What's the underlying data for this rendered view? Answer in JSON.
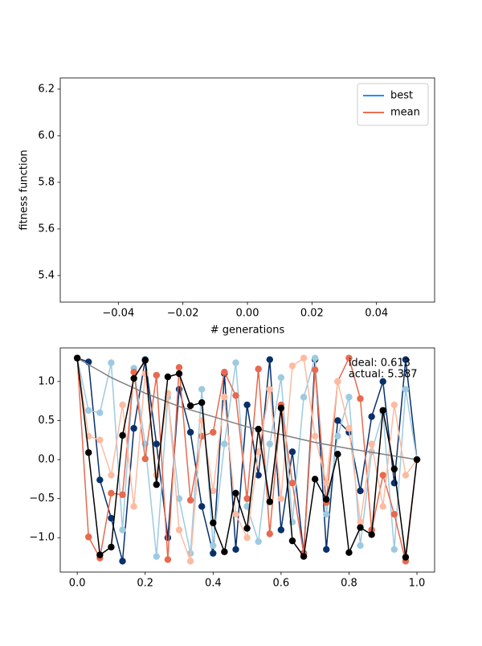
{
  "chart_data": [
    {
      "type": "line",
      "ylabel": "fitness function",
      "xlabel": "# generations",
      "xlim": [
        -0.058,
        0.058
      ],
      "ylim": [
        5.286,
        6.248
      ],
      "xticks": [
        {
          "value": -0.04,
          "label": "−0.04"
        },
        {
          "value": -0.02,
          "label": "−0.02"
        },
        {
          "value": 0,
          "label": "0.00"
        },
        0.02,
        0.04
      ],
      "yticks": [
        5.4,
        5.6,
        5.8,
        {
          "value": 6.0,
          "label": "6.0"
        },
        6.2
      ],
      "x": [],
      "series": [
        {
          "name": "best",
          "color": "#1e90ff",
          "values": []
        },
        {
          "name": "mean",
          "color": "#e8704f",
          "values": []
        }
      ],
      "legend": "upper right"
    },
    {
      "type": "line",
      "xlim": [
        -0.05,
        1.052
      ],
      "ylim": [
        -1.44,
        1.43
      ],
      "xticks": [
        {
          "value": 0,
          "label": "0.0"
        },
        0.2,
        0.4,
        0.6,
        0.8,
        {
          "value": 1,
          "label": "1.0"
        }
      ],
      "yticks": [
        {
          "value": -1,
          "label": "−1.0"
        },
        {
          "value": -0.5,
          "label": "−0.5"
        },
        {
          "value": 0,
          "label": "0.0"
        },
        0.5,
        {
          "value": 1,
          "label": "1.0"
        }
      ],
      "x": [
        0,
        0.0333,
        0.0667,
        0.1,
        0.1333,
        0.1667,
        0.2,
        0.2333,
        0.2667,
        0.3,
        0.3333,
        0.3667,
        0.4,
        0.4333,
        0.4667,
        0.5,
        0.5333,
        0.5667,
        0.6,
        0.6333,
        0.6667,
        0.7,
        0.7333,
        0.7667,
        0.8,
        0.8333,
        0.8667,
        0.9,
        0.9333,
        0.9667,
        1
      ],
      "series": [
        {
          "color": "#08306b",
          "marker": true,
          "values": [
            1.3,
            1.25,
            -0.26,
            -0.75,
            -1.3,
            0.4,
            1.28,
            0.2,
            -1.0,
            0.9,
            0.35,
            -0.6,
            -1.2,
            1.1,
            -1.15,
            0.7,
            -0.2,
            1.28,
            -0.9,
            0.1,
            -1.2,
            1.28,
            -1.15,
            0.5,
            0.35,
            -0.4,
            0.55,
            1.0,
            -0.3,
            1.28,
            0.0
          ]
        },
        {
          "color": "#9ecae1",
          "marker": true,
          "values": [
            1.3,
            0.63,
            0.6,
            1.24,
            -0.9,
            1.17,
            0.2,
            -1.24,
            0.8,
            -0.5,
            -1.2,
            0.9,
            -1.1,
            0.2,
            1.24,
            -0.6,
            -1.05,
            0.2,
            1.05,
            -0.8,
            0.8,
            1.3,
            -0.7,
            0.3,
            0.8,
            -1.1,
            0.1,
            0.6,
            -1.15,
            0.9,
            0.0
          ]
        },
        {
          "color": "#e7694e",
          "marker": true,
          "values": [
            1.3,
            -0.99,
            -1.26,
            -0.43,
            -0.45,
            1.12,
            0.01,
            1.08,
            -1.28,
            1.18,
            -0.52,
            0.3,
            0.35,
            1.12,
            0.82,
            -0.5,
            1.16,
            -0.95,
            0.7,
            -0.3,
            -1.21,
            1.15,
            -0.55,
            1.0,
            1.3,
            0.78,
            -0.9,
            -0.2,
            -0.7,
            -1.3,
            0.0
          ]
        },
        {
          "color": "#fcbba1",
          "marker": true,
          "values": [
            1.3,
            0.3,
            0.25,
            -0.2,
            0.7,
            -0.6,
            1.1,
            -0.2,
            0.85,
            -0.9,
            -1.3,
            0.5,
            -0.4,
            0.8,
            -0.7,
            -1.0,
            0.1,
            0.9,
            -0.5,
            1.2,
            1.3,
            0.3,
            -0.3,
            1.0,
            0.4,
            -0.8,
            0.2,
            -0.6,
            0.7,
            -0.2,
            0.0
          ]
        },
        {
          "color": "#808080",
          "marker": false,
          "x": [
            0,
            0.1,
            0.2,
            0.3,
            0.4,
            0.5,
            0.6,
            0.7,
            0.8,
            0.9,
            1
          ],
          "values": [
            1.3,
            1.05,
            0.85,
            0.68,
            0.55,
            0.42,
            0.32,
            0.22,
            0.14,
            0.07,
            0.0
          ]
        },
        {
          "color": "#000000",
          "marker": true,
          "values": [
            1.3,
            0.09,
            -1.22,
            -1.12,
            0.31,
            1.04,
            1.27,
            -0.32,
            1.06,
            1.1,
            0.69,
            0.73,
            -0.81,
            -1.18,
            -0.43,
            -0.88,
            0.39,
            -0.54,
            0.66,
            -1.04,
            -1.24,
            -0.25,
            -0.51,
            0.07,
            -1.19,
            -0.87,
            -0.96,
            0.63,
            -0.12,
            -1.25,
            0.0
          ]
        }
      ],
      "annotations": [
        "ideal: 0.613",
        "actual: 5.387"
      ]
    }
  ]
}
